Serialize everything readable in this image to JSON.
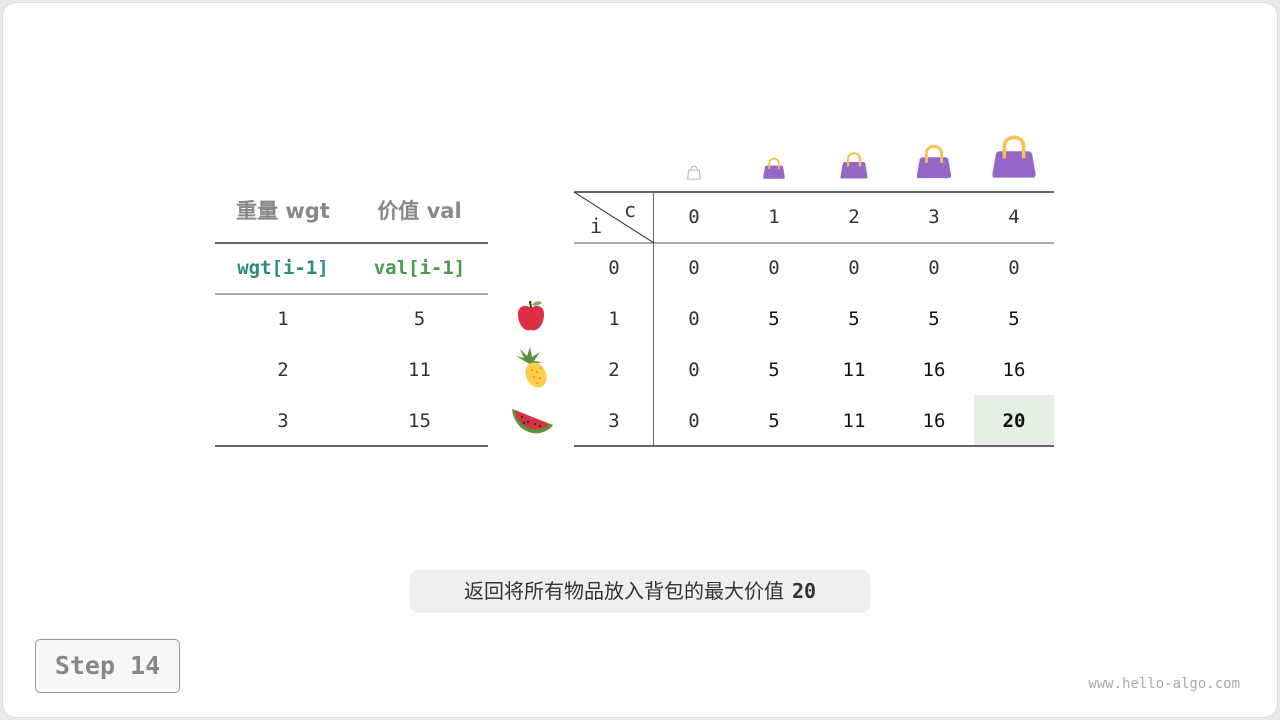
{
  "items_table": {
    "headers": [
      "重量 wgt",
      "价值 val"
    ],
    "subheaders": [
      "wgt[i-1]",
      "val[i-1]"
    ],
    "rows": [
      {
        "wgt": "1",
        "val": "5",
        "icon": "apple-icon"
      },
      {
        "wgt": "2",
        "val": "11",
        "icon": "pineapple-icon"
      },
      {
        "wgt": "3",
        "val": "15",
        "icon": "watermelon-icon"
      }
    ]
  },
  "dp_table": {
    "corner_col_label": "c",
    "corner_row_label": "i",
    "col_headers": [
      "0",
      "1",
      "2",
      "3",
      "4"
    ],
    "row_headers": [
      "0",
      "1",
      "2",
      "3"
    ],
    "cells": [
      [
        "0",
        "0",
        "0",
        "0",
        "0"
      ],
      [
        "0",
        "5",
        "5",
        "5",
        "5"
      ],
      [
        "0",
        "5",
        "11",
        "16",
        "16"
      ],
      [
        "0",
        "5",
        "11",
        "16",
        "20"
      ]
    ],
    "highlight_cell": {
      "row": 3,
      "col": 4,
      "color": "#e3f0e3"
    },
    "bag_icons": [
      "bag-empty-icon",
      "bag-icon",
      "bag-icon",
      "bag-icon",
      "bag-icon"
    ],
    "bag_color": "#9366c8",
    "handle_color": "#f7c24f"
  },
  "caption": {
    "text": "返回将所有物品放入背包的最大价值",
    "value": "20"
  },
  "step_label": "Step 14",
  "watermark": "www.hello-algo.com"
}
